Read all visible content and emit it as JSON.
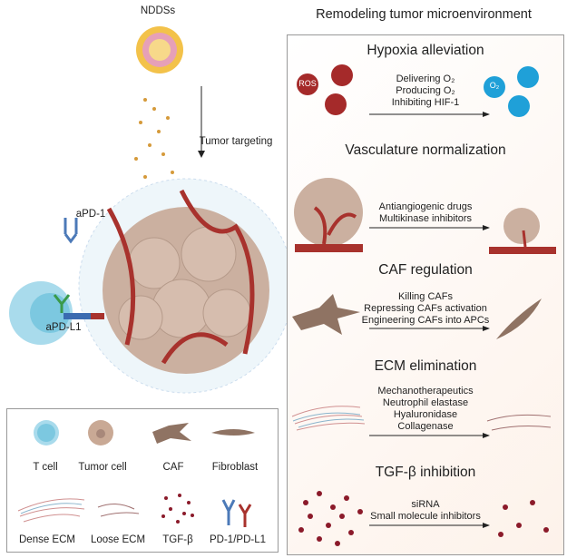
{
  "title": "Remodeling tumor microenvironment",
  "left": {
    "nddss": "NDDSs",
    "tumor_targeting": "Tumor targeting",
    "apd1": "aPD-1",
    "apdl1": "aPD-L1"
  },
  "sections": [
    {
      "title": "Hypoxia alleviation",
      "lines": [
        "Delivering O₂",
        "Producing O₂",
        "Inhibiting HIF-1"
      ],
      "before_label": "ROS",
      "after_label": "O₂"
    },
    {
      "title": "Vasculature normalization",
      "lines": [
        "Antiangiogenic drugs",
        "Multikinase inhibitors"
      ]
    },
    {
      "title": "CAF regulation",
      "lines": [
        "Killing CAFs",
        "Repressing CAFs activation",
        "Engineering CAFs into APCs"
      ]
    },
    {
      "title": "ECM elimination",
      "lines": [
        "Mechanotherapeutics",
        "Neutrophil elastase",
        "Hyaluronidase",
        "Collagenase"
      ]
    },
    {
      "title": "TGF-β inhibition",
      "lines": [
        "siRNA",
        "Small molecule inhibitors"
      ]
    }
  ],
  "legend": [
    "T cell",
    "Tumor cell",
    "CAF",
    "Fibroblast",
    "Dense ECM",
    "Loose ECM",
    "TGF-β",
    "PD-1/PD-L1"
  ],
  "colors": {
    "ros": "#a52a2a",
    "o2": "#1fa0d8",
    "tumor": "#c9a995",
    "vessel": "#a8322d",
    "tcell": "#7cc8e0"
  }
}
